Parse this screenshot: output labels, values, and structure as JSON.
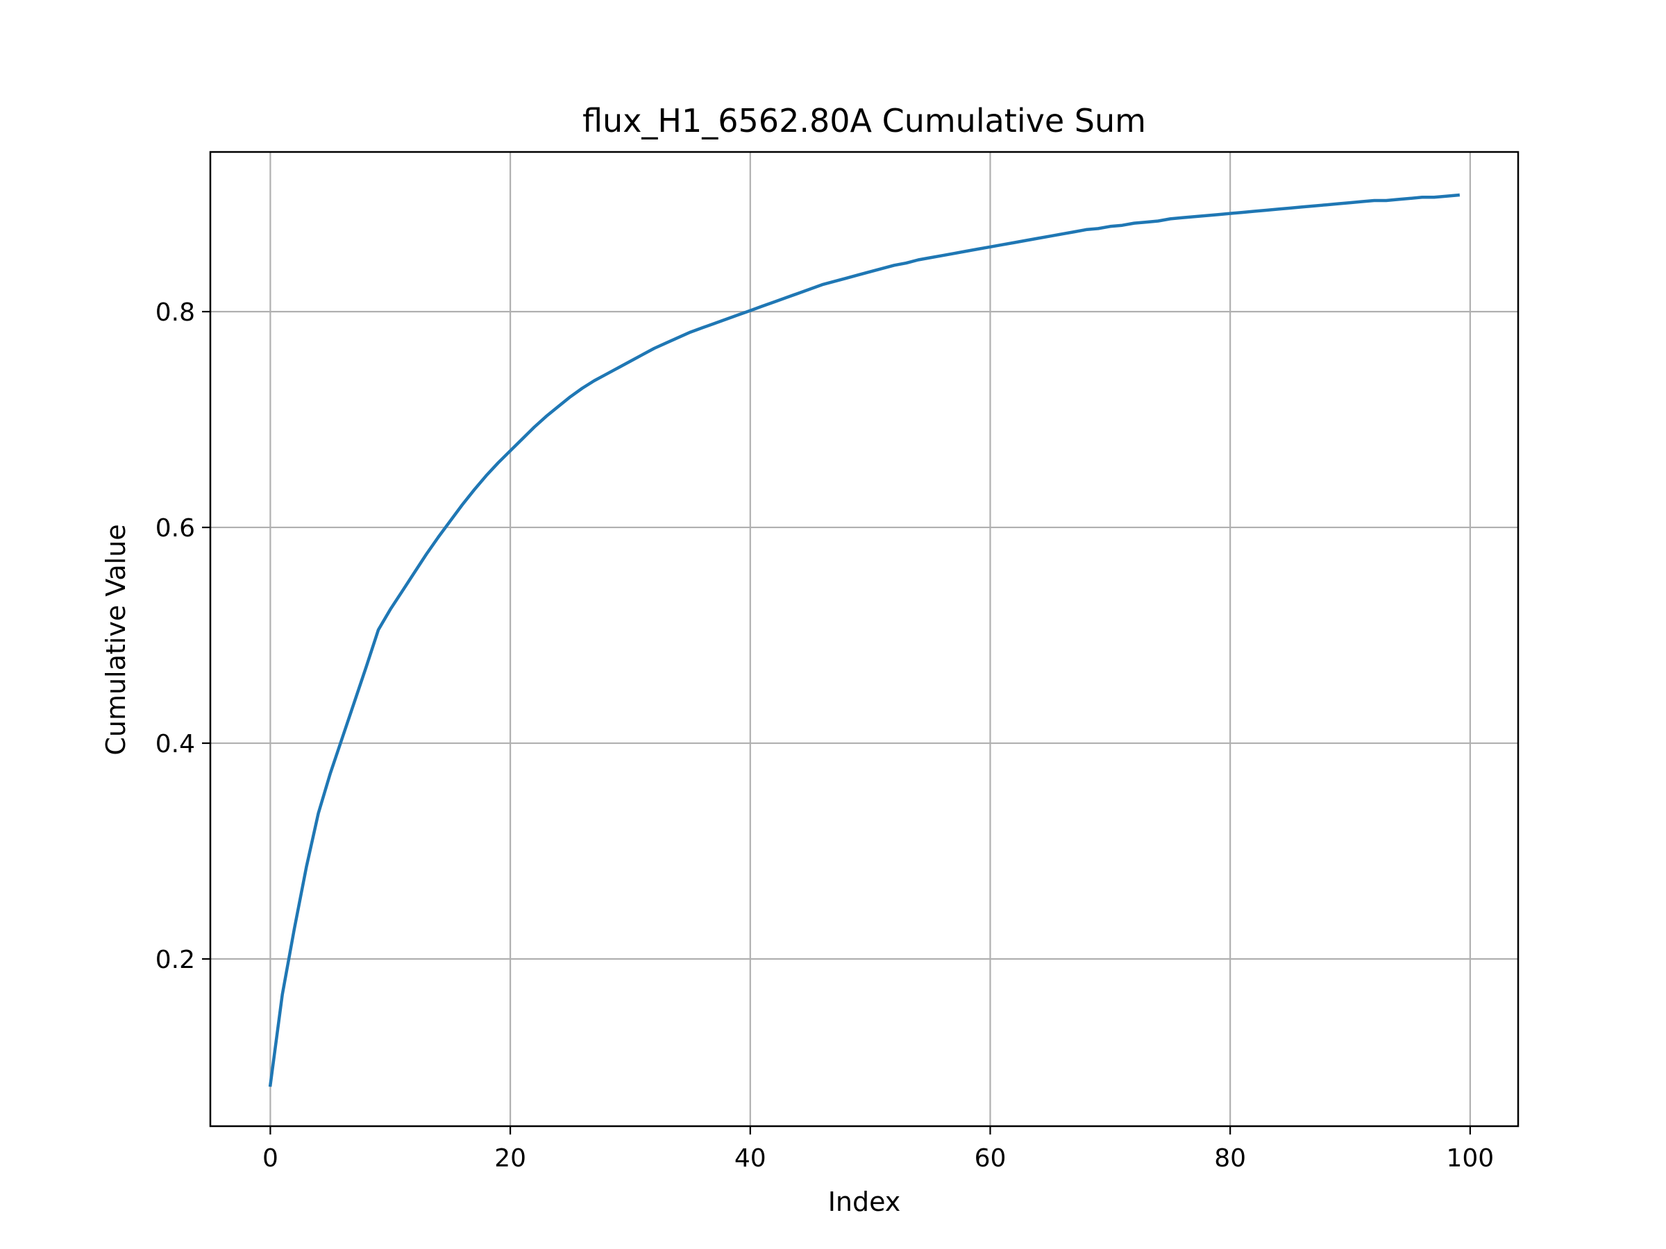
{
  "chart_data": {
    "type": "line",
    "title": "flux_H1_6562.80A Cumulative Sum",
    "xlabel": "Index",
    "ylabel": "Cumulative Value",
    "xlim": [
      -5,
      104
    ],
    "ylim": [
      0.045,
      0.948
    ],
    "xticks": [
      0,
      20,
      40,
      60,
      80,
      100
    ],
    "xtick_labels": [
      "0",
      "20",
      "40",
      "60",
      "80",
      "100"
    ],
    "yticks": [
      0.2,
      0.4,
      0.6,
      0.8
    ],
    "ytick_labels": [
      "0.2",
      "0.4",
      "0.6",
      "0.8"
    ],
    "grid": true,
    "legend": "none",
    "line_color": "#1f77b4",
    "grid_color": "#b0b0b0",
    "series": [
      {
        "x": [
          0,
          1,
          2,
          3,
          4,
          5,
          6,
          7,
          8,
          9,
          10,
          11,
          12,
          13,
          14,
          15,
          16,
          17,
          18,
          19,
          20,
          21,
          22,
          23,
          24,
          25,
          26,
          27,
          28,
          29,
          30,
          31,
          32,
          33,
          34,
          35,
          36,
          37,
          38,
          39,
          40,
          41,
          42,
          43,
          44,
          45,
          46,
          47,
          48,
          49,
          50,
          51,
          52,
          53,
          54,
          55,
          56,
          57,
          58,
          59,
          60,
          61,
          62,
          63,
          64,
          65,
          66,
          67,
          68,
          69,
          70,
          71,
          72,
          73,
          74,
          75,
          76,
          77,
          78,
          79,
          80,
          81,
          82,
          83,
          84,
          85,
          86,
          87,
          88,
          89,
          90,
          91,
          92,
          93,
          94,
          95,
          96,
          97,
          98,
          99
        ],
        "y": [
          0.083,
          0.167,
          0.228,
          0.285,
          0.335,
          0.372,
          0.405,
          0.438,
          0.471,
          0.505,
          0.524,
          0.541,
          0.558,
          0.575,
          0.591,
          0.606,
          0.621,
          0.635,
          0.648,
          0.66,
          0.671,
          0.682,
          0.693,
          0.703,
          0.712,
          0.721,
          0.729,
          0.736,
          0.742,
          0.748,
          0.754,
          0.76,
          0.766,
          0.771,
          0.776,
          0.781,
          0.785,
          0.789,
          0.793,
          0.797,
          0.801,
          0.805,
          0.809,
          0.813,
          0.817,
          0.821,
          0.825,
          0.828,
          0.831,
          0.834,
          0.837,
          0.84,
          0.843,
          0.845,
          0.848,
          0.85,
          0.852,
          0.854,
          0.856,
          0.858,
          0.86,
          0.862,
          0.864,
          0.866,
          0.868,
          0.87,
          0.872,
          0.874,
          0.876,
          0.877,
          0.879,
          0.88,
          0.882,
          0.883,
          0.884,
          0.886,
          0.887,
          0.888,
          0.889,
          0.89,
          0.891,
          0.892,
          0.893,
          0.894,
          0.895,
          0.896,
          0.897,
          0.898,
          0.899,
          0.9,
          0.901,
          0.902,
          0.903,
          0.903,
          0.904,
          0.905,
          0.906,
          0.906,
          0.907,
          0.908
        ]
      }
    ]
  }
}
